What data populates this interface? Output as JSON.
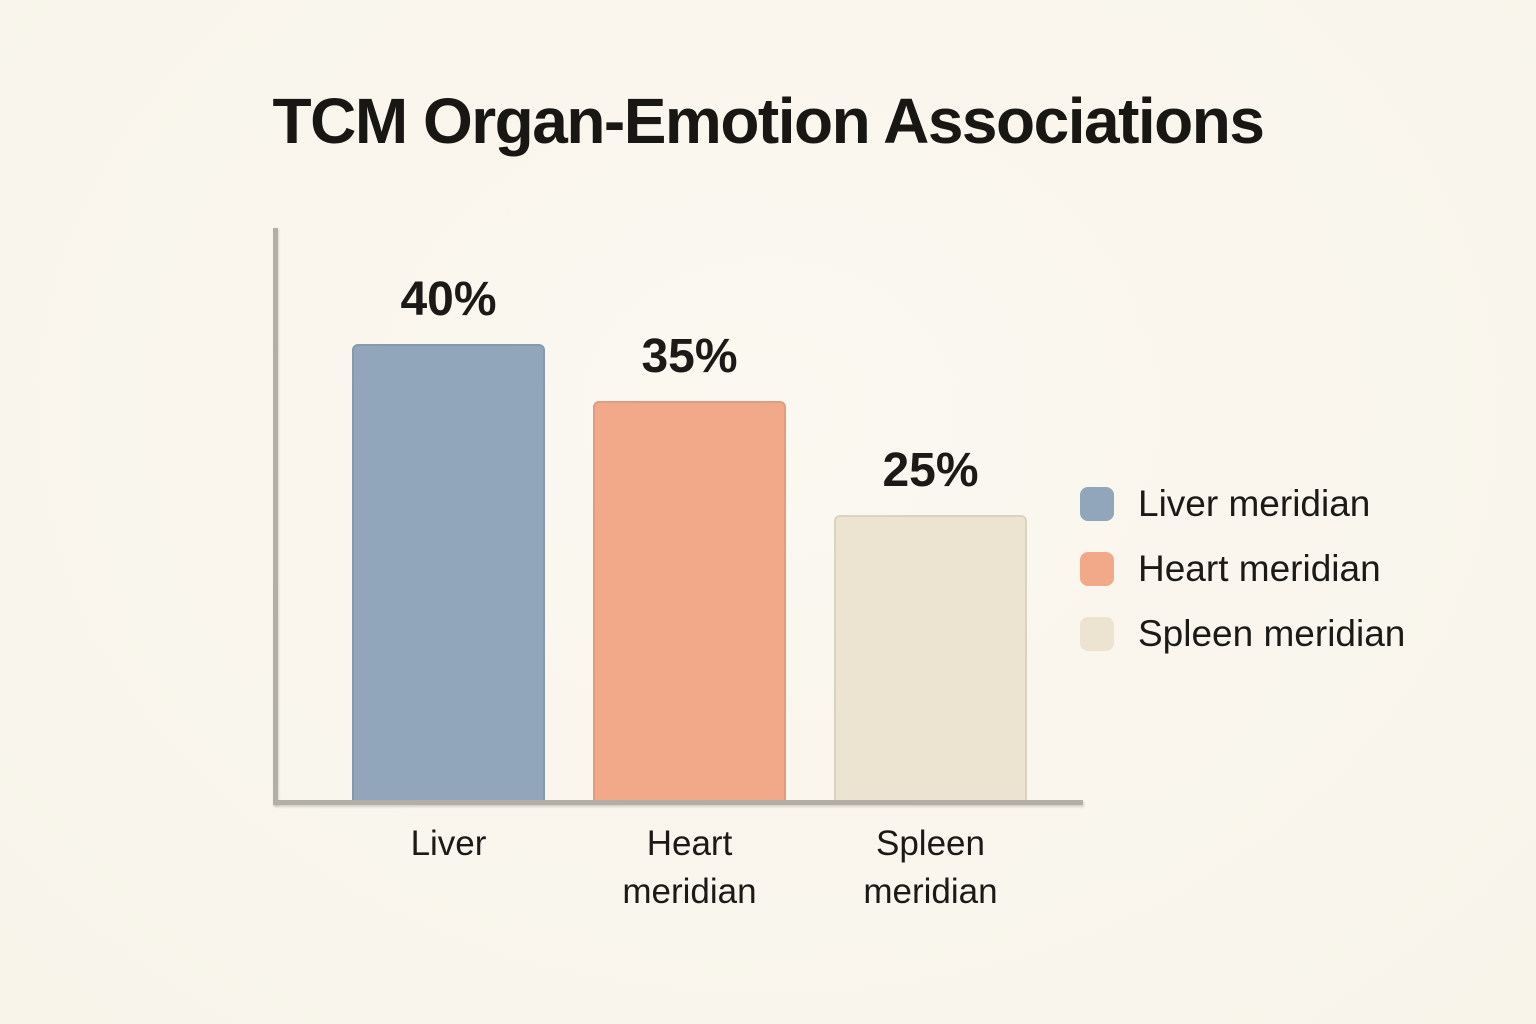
{
  "title": "TCM Organ-Emotion Associations",
  "colors": {
    "background": "#FAF7EF",
    "axis": "#B2AFA7",
    "text": "#1B1A17"
  },
  "chart_data": {
    "type": "bar",
    "title": "TCM Organ-Emotion Associations",
    "categories": [
      "Liver",
      "Heart meridian",
      "Spleen meridian"
    ],
    "values": [
      40,
      35,
      25
    ],
    "value_labels": [
      "40%",
      "35%",
      "25%"
    ],
    "bar_colors": [
      "#91A6BA",
      "#F2A98A",
      "#ECE3D1"
    ],
    "xlabel": "",
    "ylabel": "",
    "ylim": [
      0,
      50
    ],
    "grid": false,
    "legend": {
      "position": "right",
      "entries": [
        {
          "label": "Liver meridian",
          "color": "#91A6BA"
        },
        {
          "label": "Heart meridian",
          "color": "#F2A98A"
        },
        {
          "label": "Spleen meridian",
          "color": "#ECE3D1"
        }
      ]
    }
  }
}
